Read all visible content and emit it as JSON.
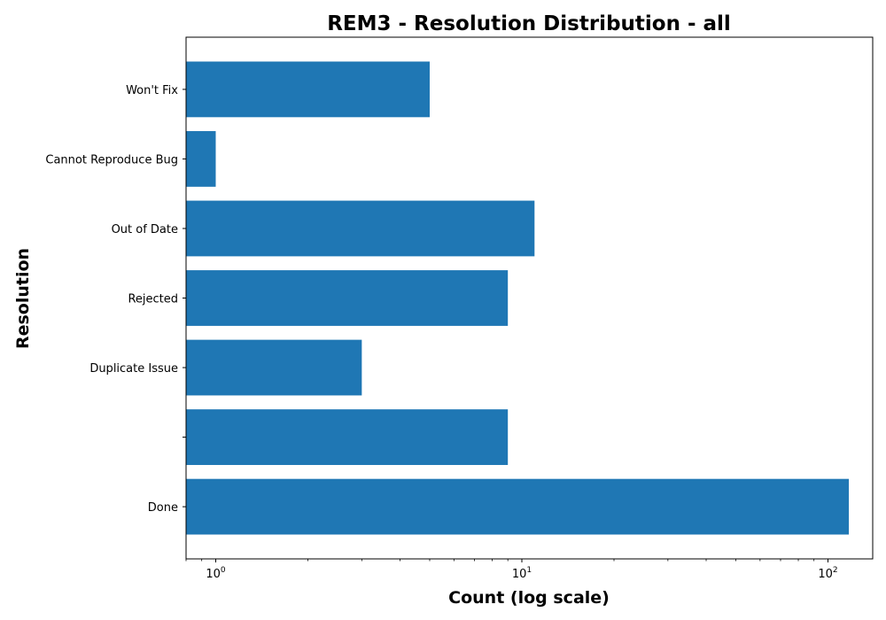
{
  "chart_data": {
    "type": "bar",
    "orientation": "horizontal",
    "title": "REM3 - Resolution Distribution - all",
    "xlabel": "Count (log scale)",
    "ylabel": "Resolution",
    "x_scale": "log",
    "xlim": [
      0.8,
      140
    ],
    "x_ticks": [
      {
        "value": 1,
        "base": "10",
        "exp": "0"
      },
      {
        "value": 10,
        "base": "10",
        "exp": "1"
      },
      {
        "value": 100,
        "base": "10",
        "exp": "2"
      }
    ],
    "categories": [
      "Done",
      "",
      "Duplicate Issue",
      "Rejected",
      "Out of Date",
      "Cannot Reproduce Bug",
      "Won't Fix"
    ],
    "values": [
      117,
      9,
      3,
      9,
      11,
      1,
      5
    ],
    "bar_color": "#1f77b4",
    "grid": false,
    "legend": false
  }
}
